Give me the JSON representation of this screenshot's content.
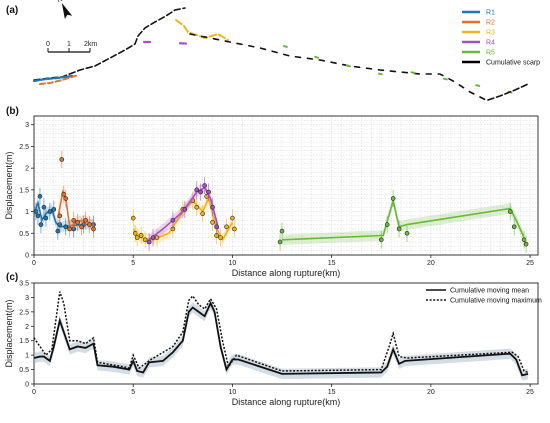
{
  "panel_labels": {
    "a": "(a)",
    "b": "(b)",
    "c": "(c)"
  },
  "map": {
    "north_label": "N",
    "scale_ticks": [
      "0",
      "1",
      "2km"
    ],
    "legend": [
      {
        "name": "R1",
        "color": "#1f77b4"
      },
      {
        "name": "R2",
        "color": "#e8702a"
      },
      {
        "name": "R3",
        "color": "#f2b21a"
      },
      {
        "name": "R4",
        "color": "#a84fc0"
      },
      {
        "name": "R5",
        "color": "#6ab83c"
      },
      {
        "name": "Cumulative scarp",
        "color": "#000000"
      }
    ]
  },
  "chart_data": [
    {
      "type": "scatter",
      "panel": "b",
      "xlabel": "Distance along rupture(km)",
      "ylabel": "Displacement(m)",
      "xlim": [
        0,
        25.4
      ],
      "ylim": [
        0,
        3.2
      ],
      "xticks": [
        "0",
        "5",
        "10",
        "15",
        "20",
        "25"
      ],
      "yticks": [
        "0",
        "0.5",
        "1",
        "1.5",
        "2",
        "2.5",
        "3"
      ],
      "grid": true,
      "series": [
        {
          "name": "R1",
          "color": "#1f77b4",
          "points": [
            [
              0.1,
              1.0
            ],
            [
              0.2,
              0.9
            ],
            [
              0.3,
              1.35
            ],
            [
              0.35,
              0.7
            ],
            [
              0.5,
              1.1
            ],
            [
              0.6,
              0.85
            ],
            [
              0.8,
              1.0
            ],
            [
              1.0,
              1.05
            ],
            [
              1.2,
              0.55
            ],
            [
              1.3,
              0.7
            ],
            [
              1.6,
              0.65
            ],
            [
              2.0,
              0.6
            ],
            [
              2.5,
              0.7
            ],
            [
              3.0,
              0.7
            ]
          ],
          "line": [
            [
              0.0,
              0.95
            ],
            [
              0.2,
              1.2
            ],
            [
              0.4,
              0.8
            ],
            [
              0.6,
              0.95
            ],
            [
              0.9,
              1.05
            ],
            [
              1.1,
              0.75
            ],
            [
              1.3,
              0.65
            ],
            [
              2.0,
              0.68
            ],
            [
              3.0,
              0.72
            ]
          ]
        },
        {
          "name": "R2",
          "color": "#e8702a",
          "points": [
            [
              1.3,
              0.9
            ],
            [
              1.4,
              2.2
            ],
            [
              1.5,
              1.4
            ],
            [
              1.6,
              1.3
            ],
            [
              1.8,
              0.6
            ],
            [
              2.0,
              0.8
            ],
            [
              2.2,
              0.75
            ],
            [
              2.4,
              0.65
            ],
            [
              2.6,
              0.8
            ],
            [
              2.8,
              0.7
            ],
            [
              3.0,
              0.6
            ]
          ],
          "line": [
            [
              1.2,
              0.85
            ],
            [
              1.45,
              1.45
            ],
            [
              1.6,
              1.3
            ],
            [
              1.8,
              0.65
            ],
            [
              2.2,
              0.78
            ],
            [
              2.6,
              0.8
            ],
            [
              3.0,
              0.65
            ]
          ]
        },
        {
          "name": "R3",
          "color": "#f2b21a",
          "points": [
            [
              5.0,
              0.85
            ],
            [
              5.1,
              0.5
            ],
            [
              5.2,
              0.4
            ],
            [
              5.4,
              0.45
            ],
            [
              5.6,
              0.35
            ],
            [
              6.2,
              0.4
            ],
            [
              7.0,
              0.6
            ],
            [
              7.5,
              1.05
            ],
            [
              8.0,
              1.25
            ],
            [
              8.2,
              1.1
            ],
            [
              8.5,
              0.95
            ],
            [
              8.7,
              1.35
            ],
            [
              9.0,
              0.75
            ],
            [
              9.2,
              0.45
            ],
            [
              9.4,
              0.4
            ],
            [
              9.7,
              0.65
            ],
            [
              10.0,
              0.85
            ],
            [
              10.1,
              0.6
            ]
          ],
          "line": [
            [
              5.0,
              0.6
            ],
            [
              5.4,
              0.4
            ],
            [
              6.0,
              0.35
            ],
            [
              6.8,
              0.5
            ],
            [
              7.5,
              1.0
            ],
            [
              8.0,
              1.25
            ],
            [
              8.5,
              1.0
            ],
            [
              8.8,
              1.3
            ],
            [
              9.2,
              0.6
            ],
            [
              9.5,
              0.35
            ],
            [
              10.0,
              0.75
            ]
          ]
        },
        {
          "name": "R4",
          "color": "#a84fc0",
          "points": [
            [
              5.8,
              0.3
            ],
            [
              6.0,
              0.4
            ],
            [
              7.0,
              0.8
            ],
            [
              7.6,
              1.05
            ],
            [
              8.2,
              1.5
            ],
            [
              8.4,
              1.45
            ],
            [
              8.6,
              1.6
            ],
            [
              8.8,
              1.45
            ],
            [
              9.0,
              1.1
            ],
            [
              9.2,
              0.65
            ]
          ],
          "line": [
            [
              5.8,
              0.35
            ],
            [
              6.5,
              0.6
            ],
            [
              7.5,
              1.0
            ],
            [
              8.2,
              1.45
            ],
            [
              8.6,
              1.55
            ],
            [
              8.9,
              1.3
            ],
            [
              9.3,
              0.6
            ]
          ]
        },
        {
          "name": "R5",
          "color": "#6ab83c",
          "points": [
            [
              12.4,
              0.3
            ],
            [
              12.5,
              0.55
            ],
            [
              17.5,
              0.35
            ],
            [
              17.8,
              0.7
            ],
            [
              18.1,
              1.3
            ],
            [
              18.4,
              0.6
            ],
            [
              18.8,
              0.5
            ],
            [
              24.0,
              1.0
            ],
            [
              24.2,
              0.65
            ],
            [
              24.7,
              0.35
            ],
            [
              24.8,
              0.25
            ]
          ],
          "line": [
            [
              12.5,
              0.35
            ],
            [
              17.6,
              0.45
            ],
            [
              18.1,
              1.25
            ],
            [
              18.4,
              0.65
            ],
            [
              18.8,
              0.7
            ],
            [
              24.0,
              1.07
            ],
            [
              24.3,
              0.8
            ],
            [
              24.7,
              0.4
            ]
          ]
        }
      ]
    },
    {
      "type": "line",
      "panel": "c",
      "xlabel": "Distance along rupture(km)",
      "ylabel": "Displacement(m)",
      "xlim": [
        0,
        25.4
      ],
      "ylim": [
        0,
        3.5
      ],
      "xticks": [
        "0",
        "5",
        "10",
        "15",
        "20",
        "25"
      ],
      "yticks": [
        "0",
        "0.5",
        "1",
        "1.5",
        "2",
        "2.5",
        "3",
        "3.5"
      ],
      "legend_position": "top-right",
      "series": [
        {
          "name": "Cumulative moving mean",
          "style": "solid",
          "points": [
            [
              0.0,
              0.9
            ],
            [
              0.3,
              0.95
            ],
            [
              0.5,
              0.95
            ],
            [
              0.8,
              0.8
            ],
            [
              1.0,
              1.3
            ],
            [
              1.3,
              2.2
            ],
            [
              1.5,
              1.8
            ],
            [
              1.8,
              1.2
            ],
            [
              2.2,
              1.3
            ],
            [
              2.6,
              1.25
            ],
            [
              3.0,
              1.4
            ],
            [
              3.2,
              0.65
            ],
            [
              4.0,
              0.6
            ],
            [
              4.8,
              0.5
            ],
            [
              5.0,
              0.8
            ],
            [
              5.2,
              0.45
            ],
            [
              5.5,
              0.4
            ],
            [
              5.8,
              0.75
            ],
            [
              6.5,
              0.8
            ],
            [
              7.0,
              1.1
            ],
            [
              7.5,
              1.5
            ],
            [
              7.8,
              2.5
            ],
            [
              8.0,
              2.65
            ],
            [
              8.3,
              2.5
            ],
            [
              8.6,
              2.35
            ],
            [
              8.9,
              2.8
            ],
            [
              9.1,
              2.5
            ],
            [
              9.4,
              1.3
            ],
            [
              9.7,
              0.5
            ],
            [
              10.0,
              0.85
            ],
            [
              10.3,
              0.85
            ],
            [
              12.5,
              0.35
            ],
            [
              17.5,
              0.4
            ],
            [
              17.8,
              0.6
            ],
            [
              18.1,
              1.2
            ],
            [
              18.4,
              0.7
            ],
            [
              18.7,
              0.8
            ],
            [
              24.0,
              1.05
            ],
            [
              24.3,
              0.85
            ],
            [
              24.6,
              0.3
            ],
            [
              24.9,
              0.35
            ]
          ]
        },
        {
          "name": "Cumulative moving maximum",
          "style": "dotted",
          "points": [
            [
              0.0,
              1.6
            ],
            [
              0.3,
              1.3
            ],
            [
              0.6,
              1.0
            ],
            [
              0.9,
              1.2
            ],
            [
              1.1,
              2.2
            ],
            [
              1.3,
              3.2
            ],
            [
              1.5,
              2.8
            ],
            [
              1.8,
              1.5
            ],
            [
              2.2,
              1.5
            ],
            [
              2.6,
              1.4
            ],
            [
              3.0,
              1.6
            ],
            [
              3.2,
              0.75
            ],
            [
              4.5,
              0.6
            ],
            [
              4.8,
              0.55
            ],
            [
              5.0,
              1.0
            ],
            [
              5.3,
              0.55
            ],
            [
              5.6,
              0.7
            ],
            [
              5.9,
              0.85
            ],
            [
              7.0,
              1.3
            ],
            [
              7.5,
              1.8
            ],
            [
              7.8,
              2.9
            ],
            [
              8.0,
              3.05
            ],
            [
              8.3,
              2.75
            ],
            [
              8.6,
              2.6
            ],
            [
              8.9,
              2.95
            ],
            [
              9.2,
              2.6
            ],
            [
              9.5,
              1.5
            ],
            [
              9.8,
              0.6
            ],
            [
              10.2,
              1.0
            ],
            [
              12.5,
              0.45
            ],
            [
              17.5,
              0.5
            ],
            [
              17.9,
              1.3
            ],
            [
              18.1,
              1.75
            ],
            [
              18.4,
              0.95
            ],
            [
              18.8,
              0.9
            ],
            [
              24.1,
              1.1
            ],
            [
              24.4,
              0.95
            ],
            [
              24.7,
              0.45
            ],
            [
              24.9,
              0.4
            ]
          ]
        }
      ]
    }
  ]
}
